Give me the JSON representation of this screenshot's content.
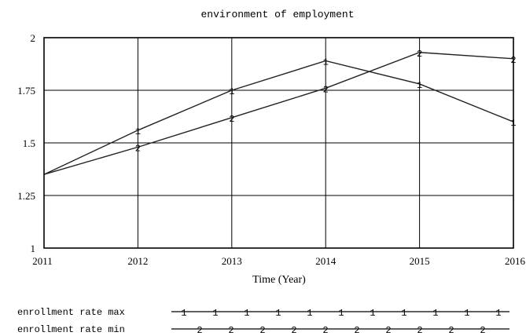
{
  "chart_data": {
    "type": "line",
    "title": "environment of employment",
    "xlabel": "Time (Year)",
    "ylabel": "",
    "x": [
      2011,
      2012,
      2013,
      2014,
      2015,
      2016
    ],
    "xlim": [
      2011,
      2016
    ],
    "ylim": [
      1,
      2
    ],
    "x_ticks": [
      "2011",
      "2012",
      "2013",
      "2014",
      "2015",
      "2016"
    ],
    "y_ticks": [
      "1",
      "1.25",
      "1.5",
      "1.75",
      "2"
    ],
    "grid": true,
    "legend_position": "bottom",
    "series": [
      {
        "name": "enrollment rate max",
        "marker": "1",
        "values": [
          1.35,
          1.56,
          1.75,
          1.89,
          1.78,
          1.6
        ]
      },
      {
        "name": "enrollment rate min",
        "marker": "2",
        "values": [
          1.35,
          1.48,
          1.62,
          1.76,
          1.93,
          1.9
        ]
      }
    ]
  }
}
